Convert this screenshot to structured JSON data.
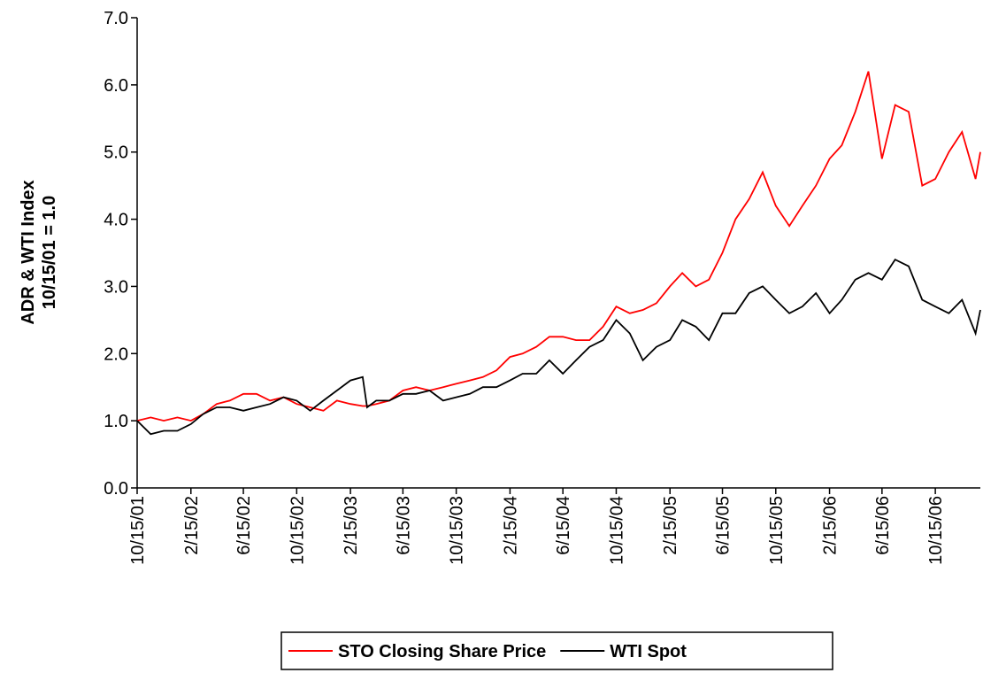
{
  "chart_data": {
    "type": "line",
    "y_label": [
      "ADR & WTI Index",
      "10/15/01 = 1.0"
    ],
    "x": [
      "10/15/01",
      "11/15/01",
      "12/15/01",
      "1/15/02",
      "2/15/02",
      "3/15/02",
      "4/15/02",
      "5/15/02",
      "6/15/02",
      "7/15/02",
      "8/15/02",
      "9/15/02",
      "10/15/02",
      "11/15/02",
      "12/15/02",
      "1/15/03",
      "2/15/03",
      "3/15/03",
      "3/25/03",
      "4/15/03",
      "5/15/03",
      "6/15/03",
      "7/15/03",
      "8/15/03",
      "9/15/03",
      "10/15/03",
      "11/15/03",
      "12/15/03",
      "1/15/04",
      "2/15/04",
      "3/15/04",
      "4/15/04",
      "5/15/04",
      "6/15/04",
      "7/15/04",
      "8/15/04",
      "9/15/04",
      "10/15/04",
      "11/15/04",
      "12/15/04",
      "1/15/05",
      "2/15/05",
      "3/15/05",
      "4/15/05",
      "5/15/05",
      "6/15/05",
      "7/15/05",
      "8/15/05",
      "9/15/05",
      "10/15/05",
      "11/15/05",
      "12/15/05",
      "1/15/06",
      "2/15/06",
      "3/15/06",
      "4/15/06",
      "5/15/06",
      "6/15/06",
      "7/15/06",
      "8/15/06",
      "9/15/06",
      "10/15/06",
      "11/15/06",
      "12/15/06",
      "1/15/07",
      "1/26/07"
    ],
    "series": [
      {
        "name": "STO Closing Share Price",
        "color": "#ff0000",
        "values": [
          1.0,
          1.05,
          1.0,
          1.05,
          1.0,
          1.1,
          1.25,
          1.3,
          1.4,
          1.4,
          1.3,
          1.35,
          1.25,
          1.2,
          1.15,
          1.3,
          1.25,
          1.22,
          1.22,
          1.25,
          1.3,
          1.45,
          1.5,
          1.45,
          1.5,
          1.55,
          1.6,
          1.65,
          1.75,
          1.95,
          2.0,
          2.1,
          2.25,
          2.25,
          2.2,
          2.2,
          2.4,
          2.7,
          2.6,
          2.65,
          2.75,
          3.0,
          3.2,
          3.0,
          3.1,
          3.5,
          4.0,
          4.3,
          4.7,
          4.2,
          3.9,
          4.2,
          4.5,
          4.9,
          5.1,
          5.6,
          6.2,
          4.9,
          5.7,
          5.6,
          4.5,
          4.6,
          5.0,
          5.3,
          4.6,
          5.0
        ]
      },
      {
        "name": "WTI Spot",
        "color": "#000000",
        "values": [
          1.0,
          0.8,
          0.85,
          0.85,
          0.95,
          1.1,
          1.2,
          1.2,
          1.15,
          1.2,
          1.25,
          1.35,
          1.3,
          1.15,
          1.3,
          1.45,
          1.6,
          1.65,
          1.2,
          1.3,
          1.3,
          1.4,
          1.4,
          1.45,
          1.3,
          1.35,
          1.4,
          1.5,
          1.5,
          1.6,
          1.7,
          1.7,
          1.9,
          1.7,
          1.9,
          2.1,
          2.2,
          2.5,
          2.3,
          1.9,
          2.1,
          2.2,
          2.5,
          2.4,
          2.2,
          2.6,
          2.6,
          2.9,
          3.0,
          2.8,
          2.6,
          2.7,
          2.9,
          2.6,
          2.8,
          3.1,
          3.2,
          3.1,
          3.4,
          3.3,
          2.8,
          2.7,
          2.6,
          2.8,
          2.3,
          2.65
        ]
      }
    ],
    "xlim": [
      "10/15/01",
      "1/26/07"
    ],
    "xticks": [
      "10/15/01",
      "2/15/02",
      "6/15/02",
      "10/15/02",
      "2/15/03",
      "6/15/03",
      "10/15/03",
      "2/15/04",
      "6/15/04",
      "10/15/04",
      "2/15/05",
      "6/15/05",
      "10/15/05",
      "2/15/06",
      "6/15/06",
      "10/15/06"
    ],
    "ylim": [
      0,
      7
    ],
    "yticks": [
      {
        "value": 0,
        "label": "0.0"
      },
      {
        "value": 1,
        "label": "1.0"
      },
      {
        "value": 2,
        "label": "2.0"
      },
      {
        "value": 3,
        "label": "3.0"
      },
      {
        "value": 4,
        "label": "4.0"
      },
      {
        "value": 5,
        "label": "5.0"
      },
      {
        "value": 6,
        "label": "6.0"
      },
      {
        "value": 7,
        "label": "7.0"
      }
    ],
    "legend": "bottom"
  }
}
